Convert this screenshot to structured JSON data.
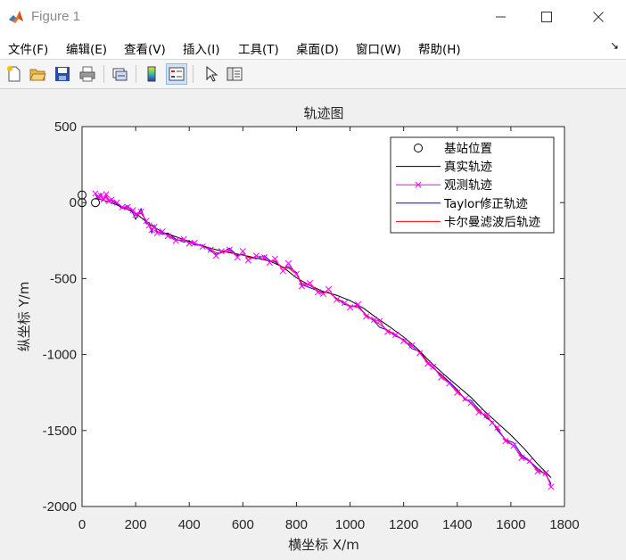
{
  "window": {
    "title": "Figure 1"
  },
  "menu": {
    "items": [
      "文件(F)",
      "编辑(E)",
      "查看(V)",
      "插入(I)",
      "工具(T)",
      "桌面(D)",
      "窗口(W)",
      "帮助(H)"
    ]
  },
  "toolbar": {
    "buttons": [
      "new-figure",
      "open-file",
      "save",
      "print",
      "link-plot",
      "insert-colorbar",
      "insert-legend",
      "edit-plot",
      "property-inspector"
    ]
  },
  "chart_data": {
    "type": "line",
    "title": "轨迹图",
    "xlabel": "横坐标 X/m",
    "ylabel": "纵坐标 Y/m",
    "xlim": [
      0,
      1800
    ],
    "ylim": [
      -2000,
      500
    ],
    "xticks": [
      0,
      200,
      400,
      600,
      800,
      1000,
      1200,
      1400,
      1600,
      1800
    ],
    "yticks": [
      500,
      0,
      -500,
      -1000,
      -1500,
      -2000
    ],
    "legend_position": "top-right",
    "grid": false,
    "base_stations": {
      "name": "基站位置",
      "color": "#000000",
      "marker": "o",
      "x": [
        0,
        0,
        50
      ],
      "y": [
        0,
        50,
        0
      ]
    },
    "series": [
      {
        "name": "真实轨迹",
        "color": "#000000",
        "marker": "none",
        "x": [
          50,
          100,
          150,
          200,
          250,
          300,
          350,
          400,
          450,
          500,
          550,
          600,
          650,
          700,
          750,
          800,
          850,
          900,
          950,
          1000,
          1050,
          1100,
          1150,
          1200,
          1250,
          1300,
          1350,
          1400,
          1450,
          1500,
          1550,
          1600,
          1650,
          1700,
          1750
        ],
        "y": [
          30,
          5,
          -30,
          -70,
          -140,
          -195,
          -225,
          -255,
          -285,
          -310,
          -330,
          -345,
          -365,
          -385,
          -425,
          -495,
          -545,
          -585,
          -610,
          -645,
          -695,
          -760,
          -820,
          -885,
          -960,
          -1050,
          -1130,
          -1205,
          -1280,
          -1370,
          -1450,
          -1530,
          -1620,
          -1720,
          -1810
        ]
      },
      {
        "name": "观测轨迹",
        "color": "#ff00ff",
        "marker": "x",
        "x": [
          50,
          60,
          70,
          80,
          90,
          100,
          110,
          130,
          150,
          170,
          190,
          200,
          220,
          240,
          250,
          260,
          270,
          280,
          300,
          320,
          350,
          380,
          400,
          420,
          450,
          480,
          500,
          520,
          550,
          580,
          600,
          620,
          650,
          680,
          700,
          720,
          750,
          770,
          800,
          820,
          850,
          880,
          900,
          920,
          950,
          980,
          1000,
          1030,
          1060,
          1090,
          1110,
          1140,
          1170,
          1200,
          1230,
          1260,
          1290,
          1310,
          1340,
          1370,
          1400,
          1430,
          1450,
          1480,
          1510,
          1530,
          1550,
          1580,
          1610,
          1640,
          1670,
          1700,
          1730,
          1750
        ],
        "y": [
          60,
          40,
          45,
          20,
          55,
          10,
          20,
          0,
          -30,
          -30,
          -50,
          -80,
          -60,
          -120,
          -150,
          -180,
          -160,
          -200,
          -190,
          -220,
          -250,
          -240,
          -270,
          -265,
          -290,
          -310,
          -350,
          -320,
          -310,
          -360,
          -320,
          -380,
          -350,
          -360,
          -395,
          -370,
          -450,
          -400,
          -470,
          -550,
          -530,
          -590,
          -600,
          -570,
          -640,
          -660,
          -690,
          -670,
          -750,
          -770,
          -780,
          -850,
          -870,
          -910,
          -940,
          -990,
          -1060,
          -1080,
          -1150,
          -1190,
          -1250,
          -1290,
          -1320,
          -1380,
          -1400,
          -1450,
          -1480,
          -1570,
          -1600,
          -1680,
          -1700,
          -1770,
          -1780,
          -1870
        ]
      },
      {
        "name": "Taylor修正轨迹",
        "color": "#0000ff",
        "marker": "none",
        "x": [
          50,
          60,
          70,
          80,
          90,
          100,
          110,
          130,
          150,
          170,
          190,
          200,
          220,
          240,
          250,
          260,
          270,
          280,
          300,
          320,
          350,
          380,
          400,
          420,
          450,
          480,
          500,
          520,
          550,
          580,
          600,
          620,
          650,
          680,
          700,
          720,
          750,
          770,
          800,
          820,
          850,
          880,
          900,
          920,
          950,
          980,
          1000,
          1030,
          1060,
          1090,
          1110,
          1140,
          1170,
          1200,
          1230,
          1260,
          1290,
          1310,
          1340,
          1370,
          1400,
          1430,
          1450,
          1480,
          1510,
          1530,
          1550,
          1580,
          1610,
          1640,
          1670,
          1700,
          1730,
          1750
        ],
        "y": [
          50,
          30,
          60,
          15,
          40,
          20,
          10,
          -10,
          -40,
          -20,
          -70,
          -110,
          -40,
          -140,
          -130,
          -200,
          -150,
          -190,
          -210,
          -200,
          -240,
          -260,
          -250,
          -280,
          -280,
          -320,
          -340,
          -330,
          -300,
          -350,
          -340,
          -360,
          -370,
          -350,
          -380,
          -390,
          -430,
          -420,
          -460,
          -540,
          -560,
          -580,
          -590,
          -590,
          -630,
          -670,
          -680,
          -680,
          -740,
          -780,
          -820,
          -840,
          -880,
          -900,
          -960,
          -980,
          -1050,
          -1090,
          -1130,
          -1180,
          -1230,
          -1300,
          -1300,
          -1360,
          -1420,
          -1440,
          -1500,
          -1560,
          -1580,
          -1660,
          -1700,
          -1750,
          -1790,
          -1850
        ]
      },
      {
        "name": "卡尔曼滤波后轨迹",
        "color": "#ff0000",
        "marker": "none",
        "x": [
          50,
          60,
          70,
          80,
          90,
          100,
          110,
          130,
          150,
          170,
          190,
          200,
          220,
          240,
          250,
          260,
          270,
          280,
          300,
          320,
          350,
          380,
          400,
          420,
          450,
          480,
          500,
          520,
          550,
          580,
          600,
          620,
          650,
          680,
          700,
          720,
          750,
          770,
          800,
          820,
          850,
          880,
          900,
          920,
          950,
          980,
          1000,
          1030,
          1060,
          1090,
          1110,
          1140,
          1170,
          1200,
          1230,
          1260,
          1290,
          1310,
          1340,
          1370,
          1400,
          1430,
          1450,
          1480,
          1510,
          1530,
          1550,
          1580,
          1610,
          1640,
          1670,
          1700,
          1730,
          1750
        ],
        "y": [
          55,
          35,
          50,
          25,
          40,
          15,
          15,
          -5,
          -30,
          -35,
          -55,
          -85,
          -70,
          -120,
          -140,
          -175,
          -165,
          -195,
          -200,
          -215,
          -245,
          -250,
          -262,
          -272,
          -288,
          -308,
          -330,
          -330,
          -320,
          -345,
          -340,
          -360,
          -365,
          -370,
          -385,
          -385,
          -430,
          -430,
          -470,
          -530,
          -545,
          -580,
          -595,
          -590,
          -630,
          -660,
          -680,
          -690,
          -740,
          -775,
          -800,
          -840,
          -870,
          -905,
          -945,
          -985,
          -1050,
          -1085,
          -1140,
          -1185,
          -1240,
          -1290,
          -1315,
          -1370,
          -1410,
          -1445,
          -1490,
          -1560,
          -1600,
          -1670,
          -1705,
          -1760,
          -1790,
          -1860
        ]
      }
    ]
  }
}
